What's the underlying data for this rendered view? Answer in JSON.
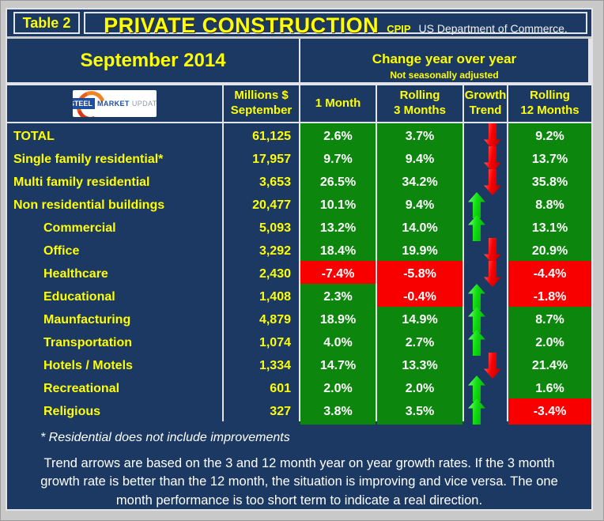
{
  "header": {
    "table_label": "Table 2",
    "title": "PRIVATE CONSTRUCTION",
    "code": "CPIP",
    "source": "US Department of Commerce.",
    "period": "September 2014",
    "change_title": "Change year over year",
    "change_subtitle": "Not seasonally adjusted"
  },
  "logo": {
    "steel": "STEEL",
    "market": "MARKET",
    "update": "UPDATE"
  },
  "columns": {
    "millions": [
      "Millions $",
      "September"
    ],
    "one_month": "1 Month",
    "rolling_3": [
      "Rolling",
      "3 Months"
    ],
    "growth": [
      "Growth",
      "Trend"
    ],
    "rolling_12": [
      "Rolling",
      "12 Months"
    ]
  },
  "footer": {
    "footnote": "* Residential does not include improvements",
    "note": "Trend arrows are based on the 3 and 12 month year on year growth rates. If the 3 month growth rate is better than the 12 month, the situation is improving and vice versa. The one month performance is too short term to indicate a real direction."
  },
  "colors": {
    "panel_navy": "#1B3963",
    "positive_green": "#0C860C",
    "negative_red": "#F80000",
    "accent_yellow": "#FFFF00",
    "gridline_white": "#E2E4EA",
    "frame_gray": "#C9C9C9",
    "arrow_up_green": "#12DE12",
    "arrow_down_red": "#FB0000"
  },
  "chart_data": {
    "type": "table",
    "title": "PRIVATE CONSTRUCTION (CPIP, US Department of Commerce)",
    "period": "September 2014",
    "value_unit": "Millions $",
    "columns": [
      "Millions $ September",
      "1 Month",
      "Rolling 3 Months",
      "Growth Trend",
      "Rolling 12 Months"
    ],
    "rows": [
      {
        "label": "TOTAL",
        "indent": false,
        "millions": 61125,
        "one_month_pct": 2.6,
        "rolling_3m_pct": 3.7,
        "trend": "down",
        "rolling_12m_pct": 9.2
      },
      {
        "label": "Single family residential*",
        "indent": false,
        "millions": 17957,
        "one_month_pct": 9.7,
        "rolling_3m_pct": 9.4,
        "trend": "down",
        "rolling_12m_pct": 13.7
      },
      {
        "label": "Multi family residential",
        "indent": false,
        "millions": 3653,
        "one_month_pct": 26.5,
        "rolling_3m_pct": 34.2,
        "trend": "down",
        "rolling_12m_pct": 35.8
      },
      {
        "label": "Non residential buildings",
        "indent": false,
        "millions": 20477,
        "one_month_pct": 10.1,
        "rolling_3m_pct": 9.4,
        "trend": "up",
        "rolling_12m_pct": 8.8
      },
      {
        "label": "Commercial",
        "indent": true,
        "millions": 5093,
        "one_month_pct": 13.2,
        "rolling_3m_pct": 14.0,
        "trend": "up",
        "rolling_12m_pct": 13.1
      },
      {
        "label": "Office",
        "indent": true,
        "millions": 3292,
        "one_month_pct": 18.4,
        "rolling_3m_pct": 19.9,
        "trend": "down",
        "rolling_12m_pct": 20.9
      },
      {
        "label": "Healthcare",
        "indent": true,
        "millions": 2430,
        "one_month_pct": -7.4,
        "rolling_3m_pct": -5.8,
        "trend": "down",
        "rolling_12m_pct": -4.4
      },
      {
        "label": "Educational",
        "indent": true,
        "millions": 1408,
        "one_month_pct": 2.3,
        "rolling_3m_pct": -0.4,
        "trend": "up",
        "rolling_12m_pct": -1.8
      },
      {
        "label": "Maunfacturing",
        "indent": true,
        "millions": 4879,
        "one_month_pct": 18.9,
        "rolling_3m_pct": 14.9,
        "trend": "up",
        "rolling_12m_pct": 8.7
      },
      {
        "label": "Transportation",
        "indent": true,
        "millions": 1074,
        "one_month_pct": 4.0,
        "rolling_3m_pct": 2.7,
        "trend": "up",
        "rolling_12m_pct": 2.0
      },
      {
        "label": "Hotels / Motels",
        "indent": true,
        "millions": 1334,
        "one_month_pct": 14.7,
        "rolling_3m_pct": 13.3,
        "trend": "down",
        "rolling_12m_pct": 21.4
      },
      {
        "label": "Recreational",
        "indent": true,
        "millions": 601,
        "one_month_pct": 2.0,
        "rolling_3m_pct": 2.0,
        "trend": "up",
        "rolling_12m_pct": 1.6
      },
      {
        "label": "Religious",
        "indent": true,
        "millions": 327,
        "one_month_pct": 3.8,
        "rolling_3m_pct": 3.5,
        "trend": "up",
        "rolling_12m_pct": -3.4
      }
    ]
  }
}
